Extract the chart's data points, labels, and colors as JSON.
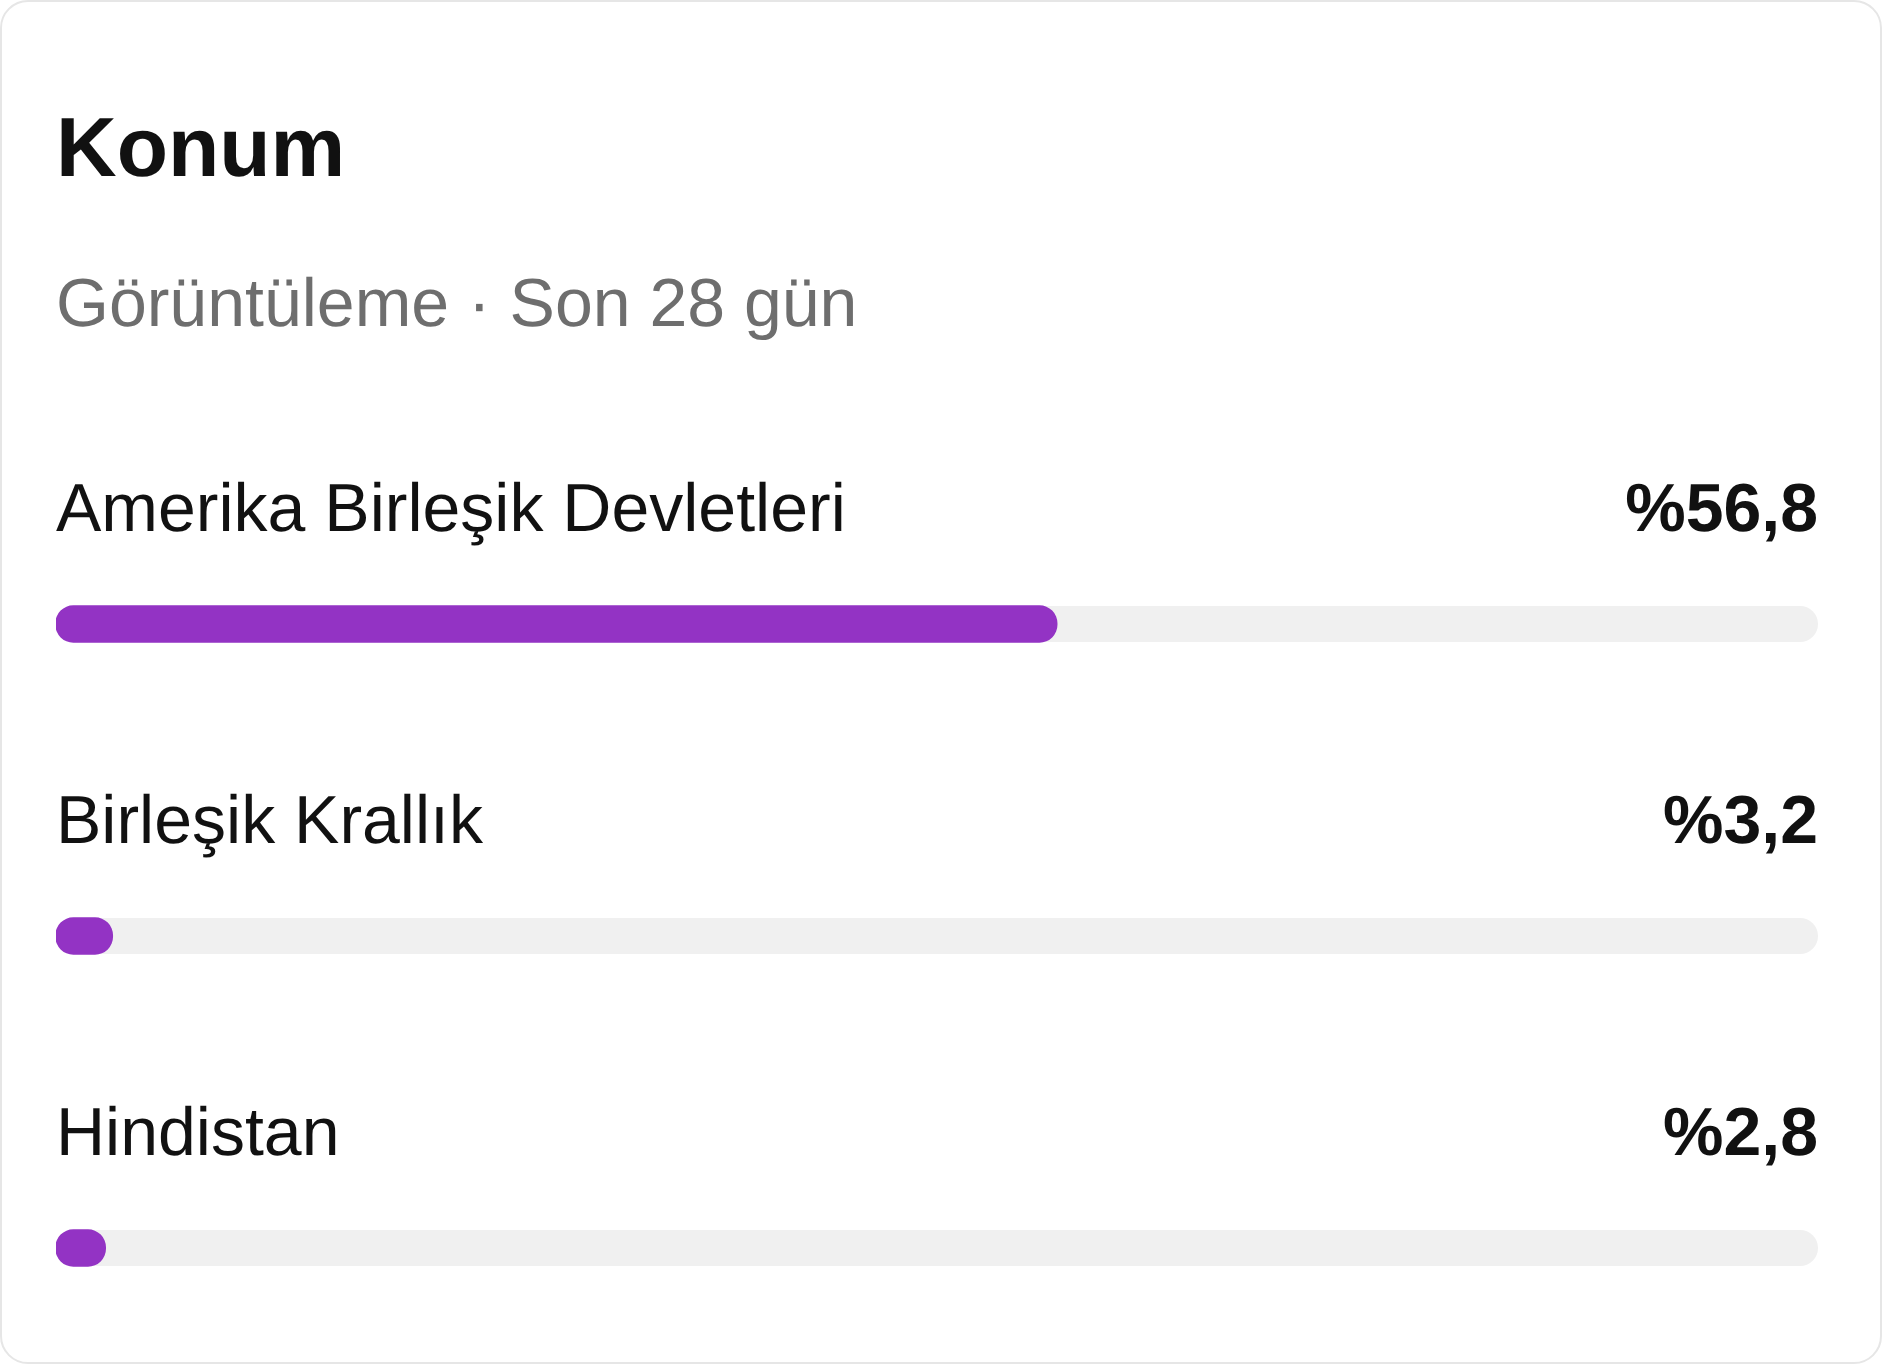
{
  "chart_data": {
    "type": "bar",
    "orientation": "horizontal",
    "title": "Konum",
    "subtitle": "Görüntüleme · Son 28 gün",
    "categories": [
      "Amerika Birleşik Devletleri",
      "Birleşik Krallık",
      "Hindistan"
    ],
    "values": [
      56.8,
      3.2,
      2.8
    ],
    "value_labels": [
      "%56,8",
      "%3,2",
      "%2,8"
    ],
    "color": "#9333c4",
    "xlim": [
      0,
      100
    ]
  }
}
